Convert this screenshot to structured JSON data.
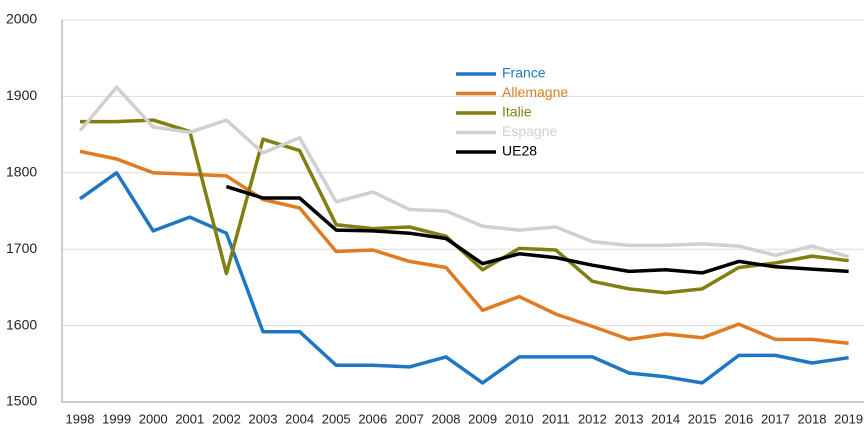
{
  "chart_data": {
    "type": "line",
    "categories": [
      "1998",
      "1999",
      "2000",
      "2001",
      "2002",
      "2003",
      "2004",
      "2005",
      "2006",
      "2007",
      "2008",
      "2009",
      "2010",
      "2011",
      "2012",
      "2013",
      "2014",
      "2015",
      "2016",
      "2017",
      "2018",
      "2019"
    ],
    "series": [
      {
        "name": "France",
        "color": "#1f77c4",
        "values": [
          1766,
          1800,
          1724,
          1742,
          1721,
          1592,
          1592,
          1548,
          1548,
          1546,
          1559,
          1525,
          1559,
          1559,
          1559,
          1538,
          1533,
          1525,
          1561,
          1561,
          1551,
          1558
        ]
      },
      {
        "name": "Allemagne",
        "color": "#e07b24",
        "values": [
          1828,
          1818,
          1800,
          1798,
          1796,
          1765,
          1754,
          1697,
          1699,
          1684,
          1676,
          1620,
          1638,
          1615,
          1599,
          1582,
          1589,
          1584,
          1602,
          1582,
          1582,
          1577
        ]
      },
      {
        "name": "Italie",
        "color": "#7f7f12",
        "values": [
          1867,
          1867,
          1869,
          1854,
          1668,
          1844,
          1829,
          1732,
          1727,
          1729,
          1717,
          1673,
          1701,
          1699,
          1658,
          1648,
          1643,
          1648,
          1676,
          1682,
          1691,
          1685
        ]
      },
      {
        "name": "Espagne",
        "color": "#d0d0d0",
        "values": [
          1855,
          1912,
          1860,
          1853,
          1869,
          1826,
          1846,
          1762,
          1775,
          1752,
          1750,
          1730,
          1725,
          1729,
          1710,
          1705,
          1705,
          1707,
          1704,
          1692,
          1704,
          1690
        ]
      },
      {
        "name": "UE28",
        "color": "#000000",
        "values": [
          null,
          null,
          null,
          null,
          1782,
          1767,
          1767,
          1725,
          1724,
          1721,
          1714,
          1681,
          1694,
          1689,
          1679,
          1671,
          1673,
          1669,
          1684,
          1677,
          1674,
          1671
        ]
      }
    ],
    "ylim": [
      1500,
      2000
    ],
    "yticks": [
      1500,
      1600,
      1700,
      1800,
      1900,
      2000
    ],
    "grid": true
  }
}
